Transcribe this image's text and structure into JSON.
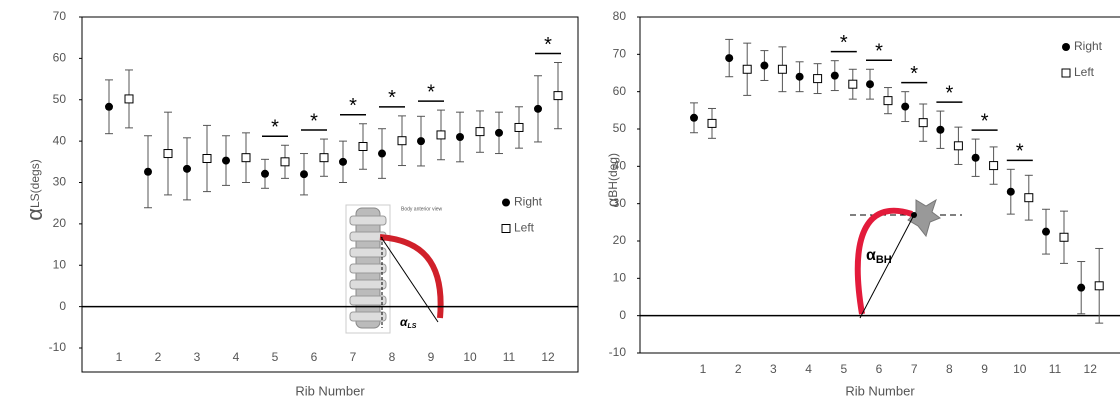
{
  "chart_data": [
    {
      "type": "errorbar",
      "ylabel_symbol": "α",
      "ylabel": "LS(degs)",
      "xlabel": "Rib Number",
      "categories": [
        "1",
        "2",
        "3",
        "4",
        "5",
        "6",
        "7",
        "8",
        "9",
        "10",
        "11",
        "12"
      ],
      "series": [
        {
          "name": "Right",
          "color": "#000000",
          "marker": "circle",
          "values": [
            48.3,
            32.6,
            33.3,
            35.3,
            32.1,
            32,
            35,
            37,
            40,
            41,
            42,
            47.8
          ],
          "errors": [
            6.5,
            8.7,
            7.5,
            6,
            3.5,
            5,
            5,
            6,
            6,
            6,
            5,
            8
          ]
        },
        {
          "name": "Left",
          "color": "#000000",
          "marker": "square",
          "values": [
            50.2,
            37,
            35.8,
            36,
            35,
            36,
            38.7,
            40.1,
            41.5,
            42.3,
            43.3,
            51
          ],
          "errors": [
            7,
            10,
            8,
            6,
            4,
            4.5,
            5.5,
            6,
            6,
            5,
            5,
            8
          ]
        }
      ],
      "ylim": [
        -10,
        70
      ],
      "yticks": [
        -10,
        0,
        10,
        20,
        30,
        40,
        50,
        60,
        70
      ],
      "grid": false,
      "legend": "center right",
      "significance_marks": [
        {
          "label": "*",
          "at": "5"
        },
        {
          "label": "*",
          "at": "6"
        },
        {
          "label": "*",
          "at": "7"
        },
        {
          "label": "*",
          "at": "8"
        },
        {
          "label": "*",
          "at": "9"
        },
        {
          "label": "*",
          "at": "12"
        }
      ],
      "inset_caption": "Body anterior view",
      "inset_symbol": "α",
      "inset_subscript": "LS"
    },
    {
      "type": "errorbar",
      "ylabel_symbol": "α",
      "ylabel": "BH(deg)",
      "xlabel": "Rib Number",
      "categories": [
        "1",
        "2",
        "3",
        "4",
        "5",
        "6",
        "7",
        "8",
        "9",
        "10",
        "11",
        "12"
      ],
      "series": [
        {
          "name": "Right",
          "color": "#000000",
          "marker": "circle",
          "values": [
            53,
            69,
            67,
            64,
            64.3,
            62,
            56,
            49.8,
            42.3,
            33.2,
            22.5,
            7.5
          ],
          "errors": [
            4,
            5,
            4,
            4,
            4,
            4,
            4,
            5,
            5,
            6,
            6,
            7
          ]
        },
        {
          "name": "Left",
          "color": "#000000",
          "marker": "square",
          "values": [
            51.5,
            66,
            66,
            63.5,
            62,
            57.6,
            51.7,
            45.5,
            40.2,
            31.6,
            21,
            8
          ],
          "errors": [
            4,
            7,
            6,
            4,
            4,
            3.5,
            5,
            5,
            5,
            6,
            7,
            10
          ]
        }
      ],
      "ylim": [
        -10,
        80
      ],
      "yticks": [
        -10,
        0,
        10,
        20,
        30,
        40,
        50,
        60,
        70,
        80
      ],
      "grid": false,
      "legend": "upper right",
      "significance_marks": [
        {
          "label": "*",
          "at": "5"
        },
        {
          "label": "*",
          "at": "6"
        },
        {
          "label": "*",
          "at": "7"
        },
        {
          "label": "*",
          "at": "8"
        },
        {
          "label": "*",
          "at": "9"
        },
        {
          "label": "*",
          "at": "10"
        }
      ],
      "inset_symbol": "α",
      "inset_subscript": "BH"
    }
  ]
}
